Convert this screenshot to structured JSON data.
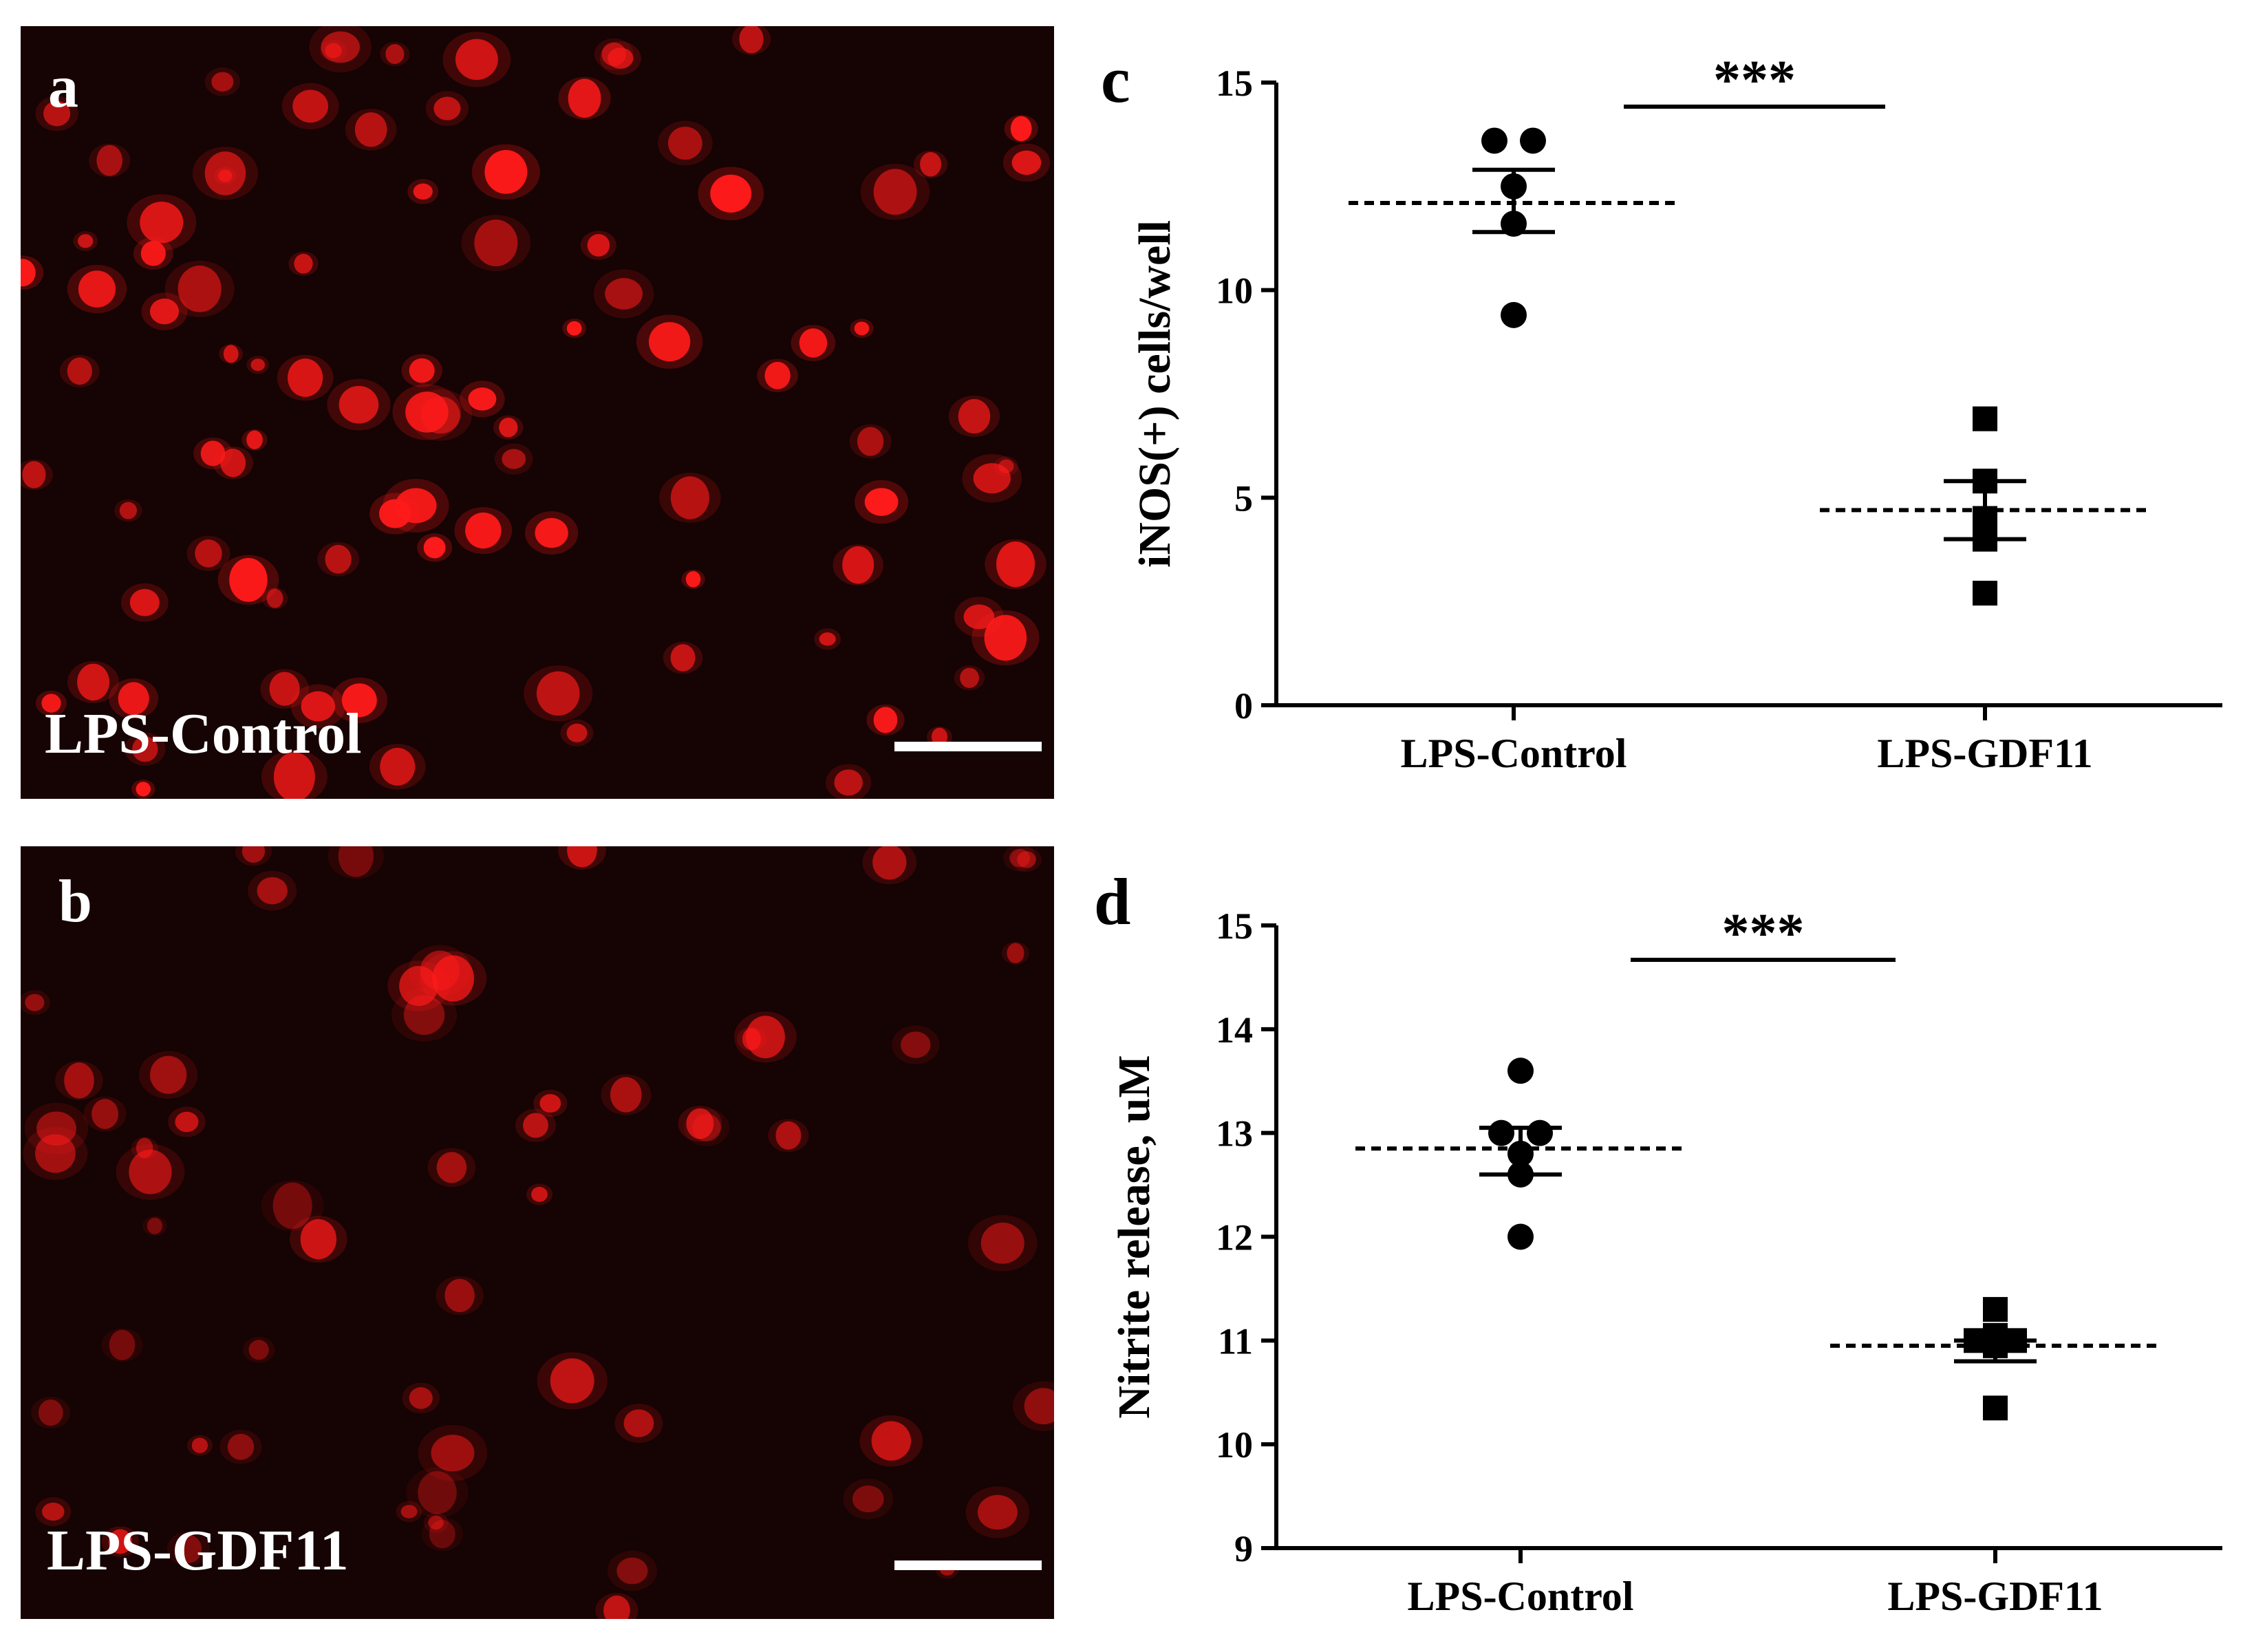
{
  "panels": {
    "a": {
      "letter": "a",
      "caption": "LPS-Control"
    },
    "b": {
      "letter": "b",
      "caption": "LPS-GDF11"
    },
    "c": {
      "letter": "c"
    },
    "d": {
      "letter": "d"
    }
  },
  "colors": {
    "cell_fill": "#ff1a1a",
    "micro_background": "#160303"
  },
  "chart_data": [
    {
      "panel": "c",
      "type": "scatter",
      "ylabel": "iNOS(+) cells/well",
      "categories": [
        "LPS-Control",
        "LPS-GDF11"
      ],
      "ylim": [
        0,
        15
      ],
      "yticks": [
        0,
        5,
        10,
        15
      ],
      "significance": "***",
      "series": [
        {
          "category": "LPS-Control",
          "marker": "circle",
          "points": [
            13.6,
            13.6,
            12.5,
            11.6,
            9.4
          ],
          "mean": 12.1,
          "sem": [
            11.4,
            12.9
          ]
        },
        {
          "category": "LPS-GDF11",
          "marker": "square",
          "points": [
            6.9,
            5.4,
            4.5,
            4.0,
            2.7
          ],
          "mean": 4.7,
          "sem": [
            4.0,
            5.4
          ]
        }
      ]
    },
    {
      "panel": "d",
      "type": "scatter",
      "ylabel": "Nitrite release, uM",
      "categories": [
        "LPS-Control",
        "LPS-GDF11"
      ],
      "ylim": [
        9,
        15
      ],
      "yticks": [
        9,
        10,
        11,
        12,
        13,
        14,
        15
      ],
      "significance": "***",
      "series": [
        {
          "category": "LPS-Control",
          "marker": "circle",
          "points": [
            13.6,
            13.0,
            13.0,
            12.8,
            12.6,
            12.0
          ],
          "mean": 12.85,
          "sem": [
            12.6,
            13.05
          ]
        },
        {
          "category": "LPS-GDF11",
          "marker": "square",
          "points": [
            11.3,
            11.05,
            11.0,
            11.0,
            10.95,
            10.35
          ],
          "mean": 10.95,
          "sem": [
            10.8,
            11.0
          ]
        }
      ]
    }
  ]
}
